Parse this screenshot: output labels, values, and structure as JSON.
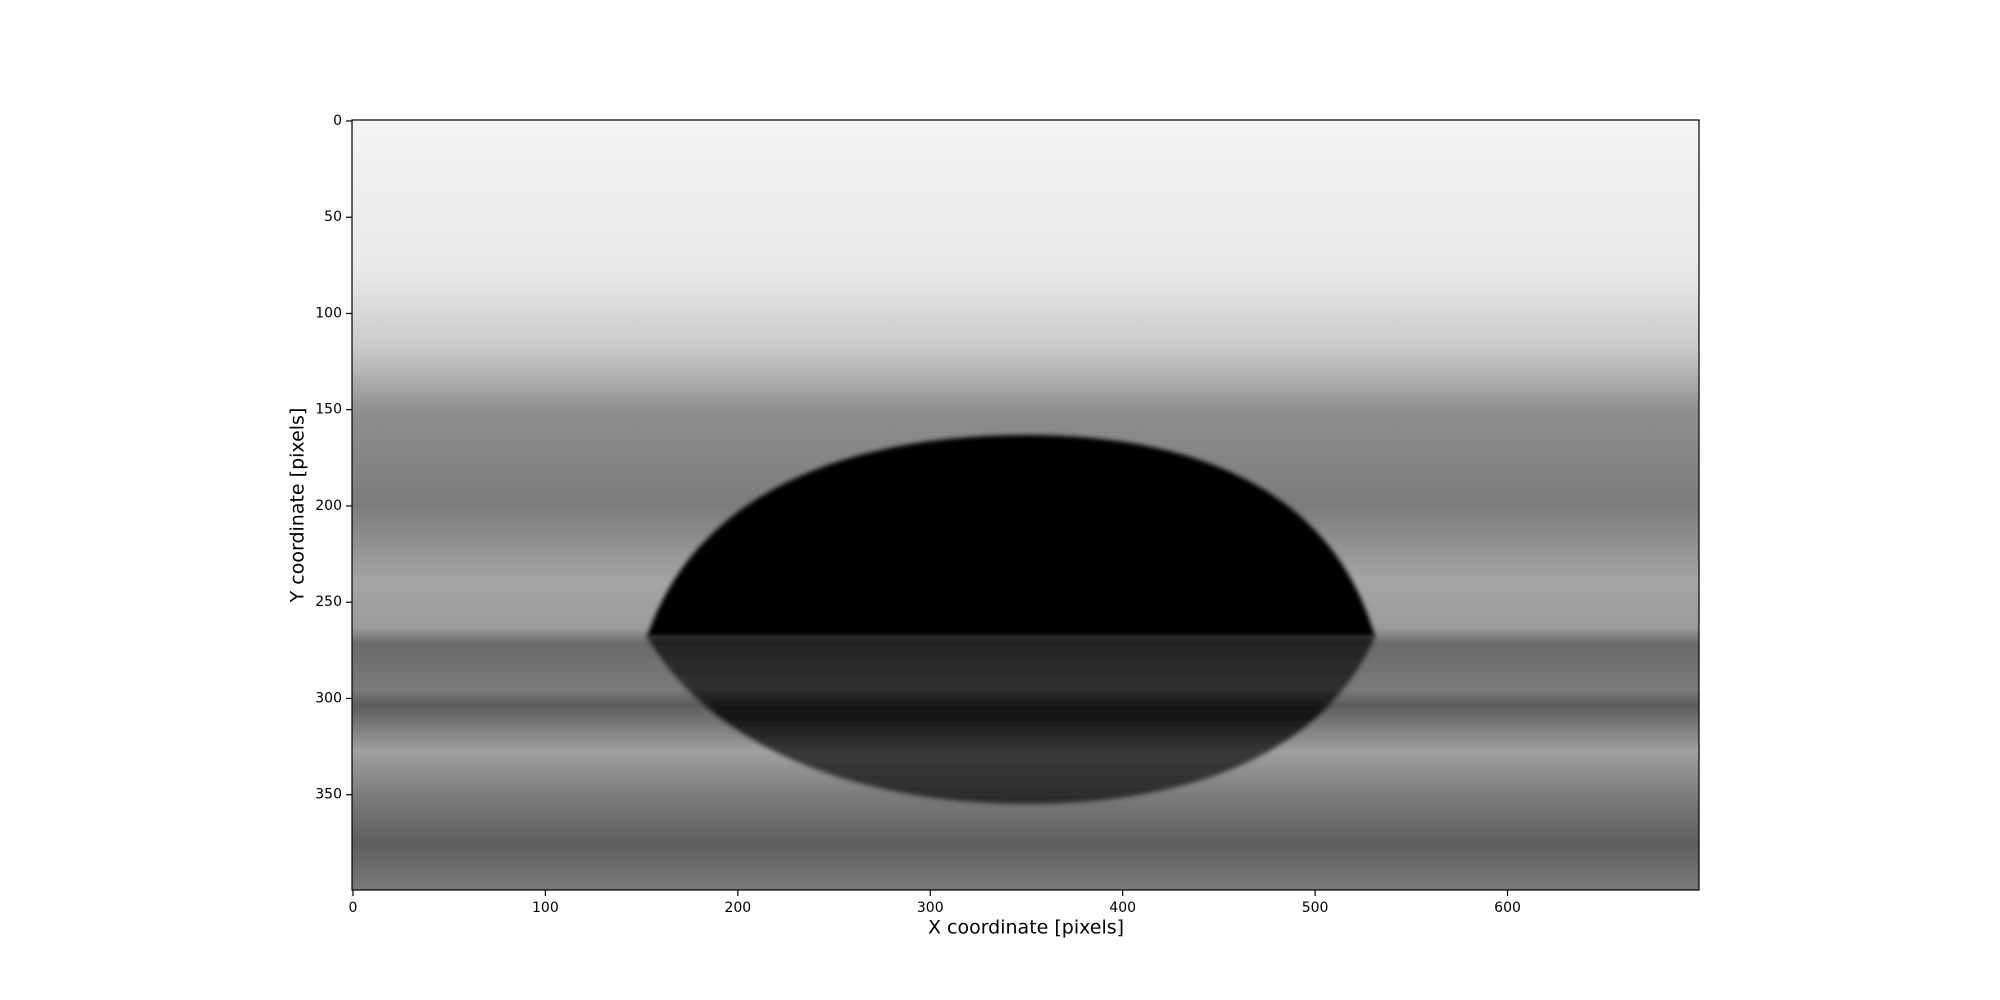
{
  "chart_data": {
    "type": "image",
    "xlabel": "X coordinate [pixels]",
    "ylabel": "Y coordinate [pixels]",
    "xlim": [
      -0.5,
      699.5
    ],
    "ylim": [
      399.5,
      -0.5
    ],
    "xticks": [
      0,
      100,
      200,
      300,
      400,
      500,
      600
    ],
    "yticks": [
      0,
      50,
      100,
      150,
      200,
      250,
      300,
      350
    ]
  }
}
